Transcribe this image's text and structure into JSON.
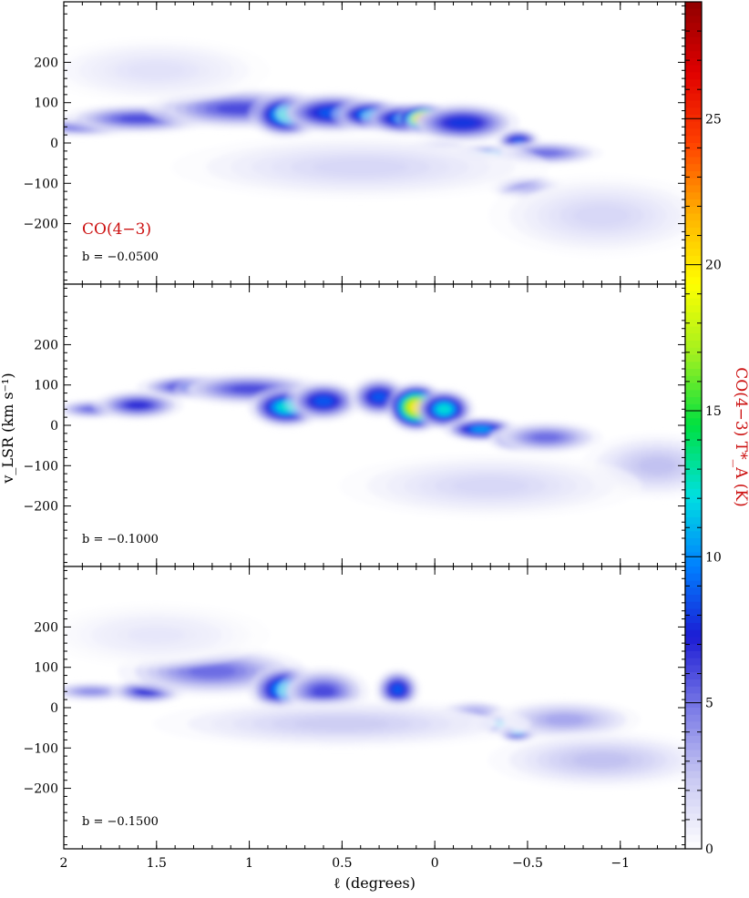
{
  "chart_data": {
    "type": "heatmap",
    "layout": "three stacked longitude-velocity panels sharing x axis and colorbar",
    "xlabel": "ℓ (degrees)",
    "ylabel": "v_LSR (km s⁻¹)",
    "xlim": [
      2,
      -1.35
    ],
    "ylim": [
      -350,
      350
    ],
    "x_ticks": [
      2,
      1.5,
      1,
      0.5,
      0,
      -0.5,
      -1
    ],
    "x_tick_labels": [
      "2",
      "1.5",
      "1",
      "0.5",
      "0",
      "−0.5",
      "−1"
    ],
    "y_ticks": [
      200,
      100,
      0,
      -100,
      -200
    ],
    "y_tick_labels": [
      "200",
      "100",
      "0",
      "−100",
      "−200"
    ],
    "line_label": "CO(4−3)",
    "colorbar": {
      "label": "CO(4−3) T*_A (K)",
      "range": [
        0,
        29
      ],
      "ticks": [
        0,
        5,
        10,
        15,
        20,
        25
      ],
      "tick_labels": [
        "0",
        "5",
        "10",
        "15",
        "20",
        "25"
      ],
      "colors": [
        "#ffffff",
        "#c8c8f2",
        "#7a7ae6",
        "#1c1cd4",
        "#0080ff",
        "#00e0e0",
        "#00e040",
        "#a0f020",
        "#ffff00",
        "#ffb000",
        "#ff4000",
        "#e00000",
        "#900000"
      ]
    },
    "panels": [
      {
        "label": "b = −0.0500",
        "b": -0.05,
        "components": [
          {
            "x": 1.9,
            "y": 40,
            "sx": 0.15,
            "sy": 12,
            "peak": 6
          },
          {
            "x": 1.6,
            "y": 60,
            "sx": 0.2,
            "sy": 18,
            "peak": 7
          },
          {
            "x": 1.25,
            "y": 95,
            "sx": 0.12,
            "sy": 15,
            "peak": 12
          },
          {
            "x": 1.05,
            "y": 85,
            "sx": 0.25,
            "sy": 25,
            "peak": 7
          },
          {
            "x": 0.8,
            "y": 70,
            "sx": 0.1,
            "sy": 28,
            "peak": 14
          },
          {
            "x": 0.55,
            "y": 75,
            "sx": 0.15,
            "sy": 25,
            "peak": 10
          },
          {
            "x": 0.35,
            "y": 70,
            "sx": 0.1,
            "sy": 20,
            "peak": 12
          },
          {
            "x": 0.15,
            "y": 60,
            "sx": 0.12,
            "sy": 20,
            "peak": 12
          },
          {
            "x": 0.05,
            "y": 60,
            "sx": 0.08,
            "sy": 18,
            "peak": 27
          },
          {
            "x": -0.15,
            "y": 50,
            "sx": 0.15,
            "sy": 25,
            "peak": 9
          },
          {
            "x": 0,
            "y": -10,
            "sx": 0.1,
            "sy": 8,
            "peak": 8
          },
          {
            "x": -0.3,
            "y": -25,
            "sx": 0.15,
            "sy": 10,
            "peak": 12
          },
          {
            "x": -0.45,
            "y": 5,
            "sx": 0.06,
            "sy": 15,
            "peak": 10
          },
          {
            "x": -0.6,
            "y": -25,
            "sx": 0.15,
            "sy": 15,
            "peak": 6
          },
          {
            "x": -0.5,
            "y": -110,
            "sx": 0.1,
            "sy": 15,
            "peak": 6
          },
          {
            "x": -0.9,
            "y": -180,
            "sx": 0.3,
            "sy": 50,
            "peak": 2
          },
          {
            "x": 1.5,
            "y": 180,
            "sx": 0.3,
            "sy": 40,
            "peak": 1.5
          },
          {
            "x": 0.4,
            "y": -60,
            "sx": 0.5,
            "sy": 40,
            "peak": 2
          }
        ]
      },
      {
        "label": "b = −0.1000",
        "b": -0.1,
        "components": [
          {
            "x": 1.85,
            "y": 40,
            "sx": 0.1,
            "sy": 12,
            "peak": 6
          },
          {
            "x": 1.6,
            "y": 50,
            "sx": 0.12,
            "sy": 18,
            "peak": 8
          },
          {
            "x": 1.3,
            "y": 95,
            "sx": 0.15,
            "sy": 15,
            "peak": 9
          },
          {
            "x": 1.0,
            "y": 90,
            "sx": 0.2,
            "sy": 20,
            "peak": 7
          },
          {
            "x": 0.8,
            "y": 45,
            "sx": 0.1,
            "sy": 25,
            "peak": 14
          },
          {
            "x": 0.6,
            "y": 60,
            "sx": 0.1,
            "sy": 25,
            "peak": 10
          },
          {
            "x": 0.3,
            "y": 70,
            "sx": 0.08,
            "sy": 25,
            "peak": 10
          },
          {
            "x": 0.1,
            "y": 45,
            "sx": 0.08,
            "sy": 30,
            "peak": 23
          },
          {
            "x": -0.05,
            "y": 40,
            "sx": 0.08,
            "sy": 25,
            "peak": 14
          },
          {
            "x": -0.25,
            "y": -10,
            "sx": 0.1,
            "sy": 15,
            "peak": 12
          },
          {
            "x": -0.45,
            "y": -35,
            "sx": 0.08,
            "sy": 15,
            "peak": 12
          },
          {
            "x": -0.6,
            "y": -30,
            "sx": 0.15,
            "sy": 20,
            "peak": 6
          },
          {
            "x": -1.2,
            "y": -100,
            "sx": 0.2,
            "sy": 40,
            "peak": 3
          },
          {
            "x": -0.3,
            "y": -150,
            "sx": 0.4,
            "sy": 40,
            "peak": 2
          }
        ]
      },
      {
        "label": "b = −0.1500",
        "b": -0.15,
        "components": [
          {
            "x": 1.85,
            "y": 40,
            "sx": 0.12,
            "sy": 12,
            "peak": 5
          },
          {
            "x": 1.55,
            "y": 40,
            "sx": 0.1,
            "sy": 15,
            "peak": 8
          },
          {
            "x": 1.2,
            "y": 90,
            "sx": 0.25,
            "sy": 30,
            "peak": 6
          },
          {
            "x": 0.8,
            "y": 45,
            "sx": 0.1,
            "sy": 30,
            "peak": 13
          },
          {
            "x": 0.6,
            "y": 40,
            "sx": 0.12,
            "sy": 30,
            "peak": 7
          },
          {
            "x": 0.2,
            "y": 45,
            "sx": 0.06,
            "sy": 25,
            "peak": 10
          },
          {
            "x": -0.2,
            "y": -15,
            "sx": 0.1,
            "sy": 15,
            "peak": 8
          },
          {
            "x": -0.35,
            "y": -40,
            "sx": 0.08,
            "sy": 12,
            "peak": 13
          },
          {
            "x": -0.45,
            "y": -60,
            "sx": 0.06,
            "sy": 12,
            "peak": 12
          },
          {
            "x": -0.7,
            "y": -30,
            "sx": 0.2,
            "sy": 25,
            "peak": 4
          },
          {
            "x": -0.9,
            "y": -130,
            "sx": 0.3,
            "sy": 35,
            "peak": 3
          },
          {
            "x": 0.5,
            "y": -40,
            "sx": 0.5,
            "sy": 30,
            "peak": 2.5
          },
          {
            "x": 1.5,
            "y": 180,
            "sx": 0.3,
            "sy": 40,
            "peak": 1.2
          }
        ]
      }
    ]
  }
}
